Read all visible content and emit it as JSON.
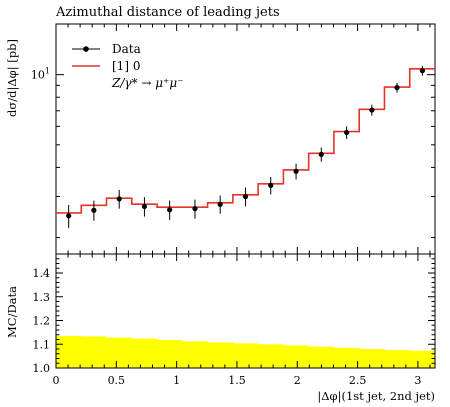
{
  "chart_data": {
    "type": "line",
    "title": "Azimuthal distance of leading jets",
    "xlabel": "|Δφ|(1st jet, 2nd jet)",
    "ylabel": "dσ/d|Δφ| [pb]",
    "xlim": [
      0,
      3.14159
    ],
    "ylim": [
      1.7,
      16.5
    ],
    "yscale": "log",
    "x_ticks": [
      "0",
      "0.5",
      "1",
      "1.5",
      "2",
      "2.5",
      "3"
    ],
    "y_ticks": [
      "10^1"
    ],
    "grid": false,
    "legend": {
      "placement": "top-left",
      "entries": [
        "Data",
        "[1] 0",
        "Z/γ* → μ⁺μ⁻"
      ]
    },
    "bin_edges": [
      0,
      0.2094,
      0.4189,
      0.6283,
      0.8378,
      1.0472,
      1.2566,
      1.4661,
      1.6755,
      1.885,
      2.0944,
      2.3038,
      2.5133,
      2.7227,
      2.9322,
      3.1416
    ],
    "series": [
      {
        "name": "Data",
        "kind": "points_with_errors",
        "color": "#000000",
        "x": [
          0.105,
          0.314,
          0.524,
          0.733,
          0.942,
          1.152,
          1.361,
          1.571,
          1.78,
          1.99,
          2.199,
          2.409,
          2.618,
          2.827,
          3.037
        ],
        "y": [
          2.48,
          2.62,
          2.93,
          2.72,
          2.63,
          2.66,
          2.78,
          3.0,
          3.35,
          3.85,
          4.55,
          5.65,
          7.05,
          8.8,
          10.4
        ],
        "yerr": [
          0.28,
          0.26,
          0.27,
          0.26,
          0.25,
          0.25,
          0.25,
          0.28,
          0.29,
          0.3,
          0.32,
          0.35,
          0.38,
          0.42,
          0.5
        ]
      },
      {
        "name": "[1] 0",
        "kind": "histogram",
        "color": "#e8322a",
        "values": [
          2.55,
          2.75,
          2.95,
          2.78,
          2.7,
          2.7,
          2.82,
          3.05,
          3.4,
          3.9,
          4.6,
          5.7,
          7.1,
          8.85,
          10.6
        ]
      }
    ],
    "ratio_panel": {
      "ylabel": "MC/Data",
      "ylim": [
        1.0,
        1.48
      ],
      "y_ticks": [
        "1.0",
        "1.1",
        "1.2",
        "1.3",
        "1.4"
      ],
      "band_color": "#ffff00",
      "band_lower": [
        1.0,
        1.0,
        1.0,
        1.0,
        1.0,
        1.0,
        1.0,
        1.0,
        1.0,
        1.0,
        1.0,
        1.0,
        1.0,
        1.0,
        1.0
      ],
      "band_upper": [
        1.135,
        1.133,
        1.128,
        1.124,
        1.118,
        1.112,
        1.108,
        1.104,
        1.1,
        1.095,
        1.09,
        1.085,
        1.08,
        1.075,
        1.073
      ]
    }
  }
}
